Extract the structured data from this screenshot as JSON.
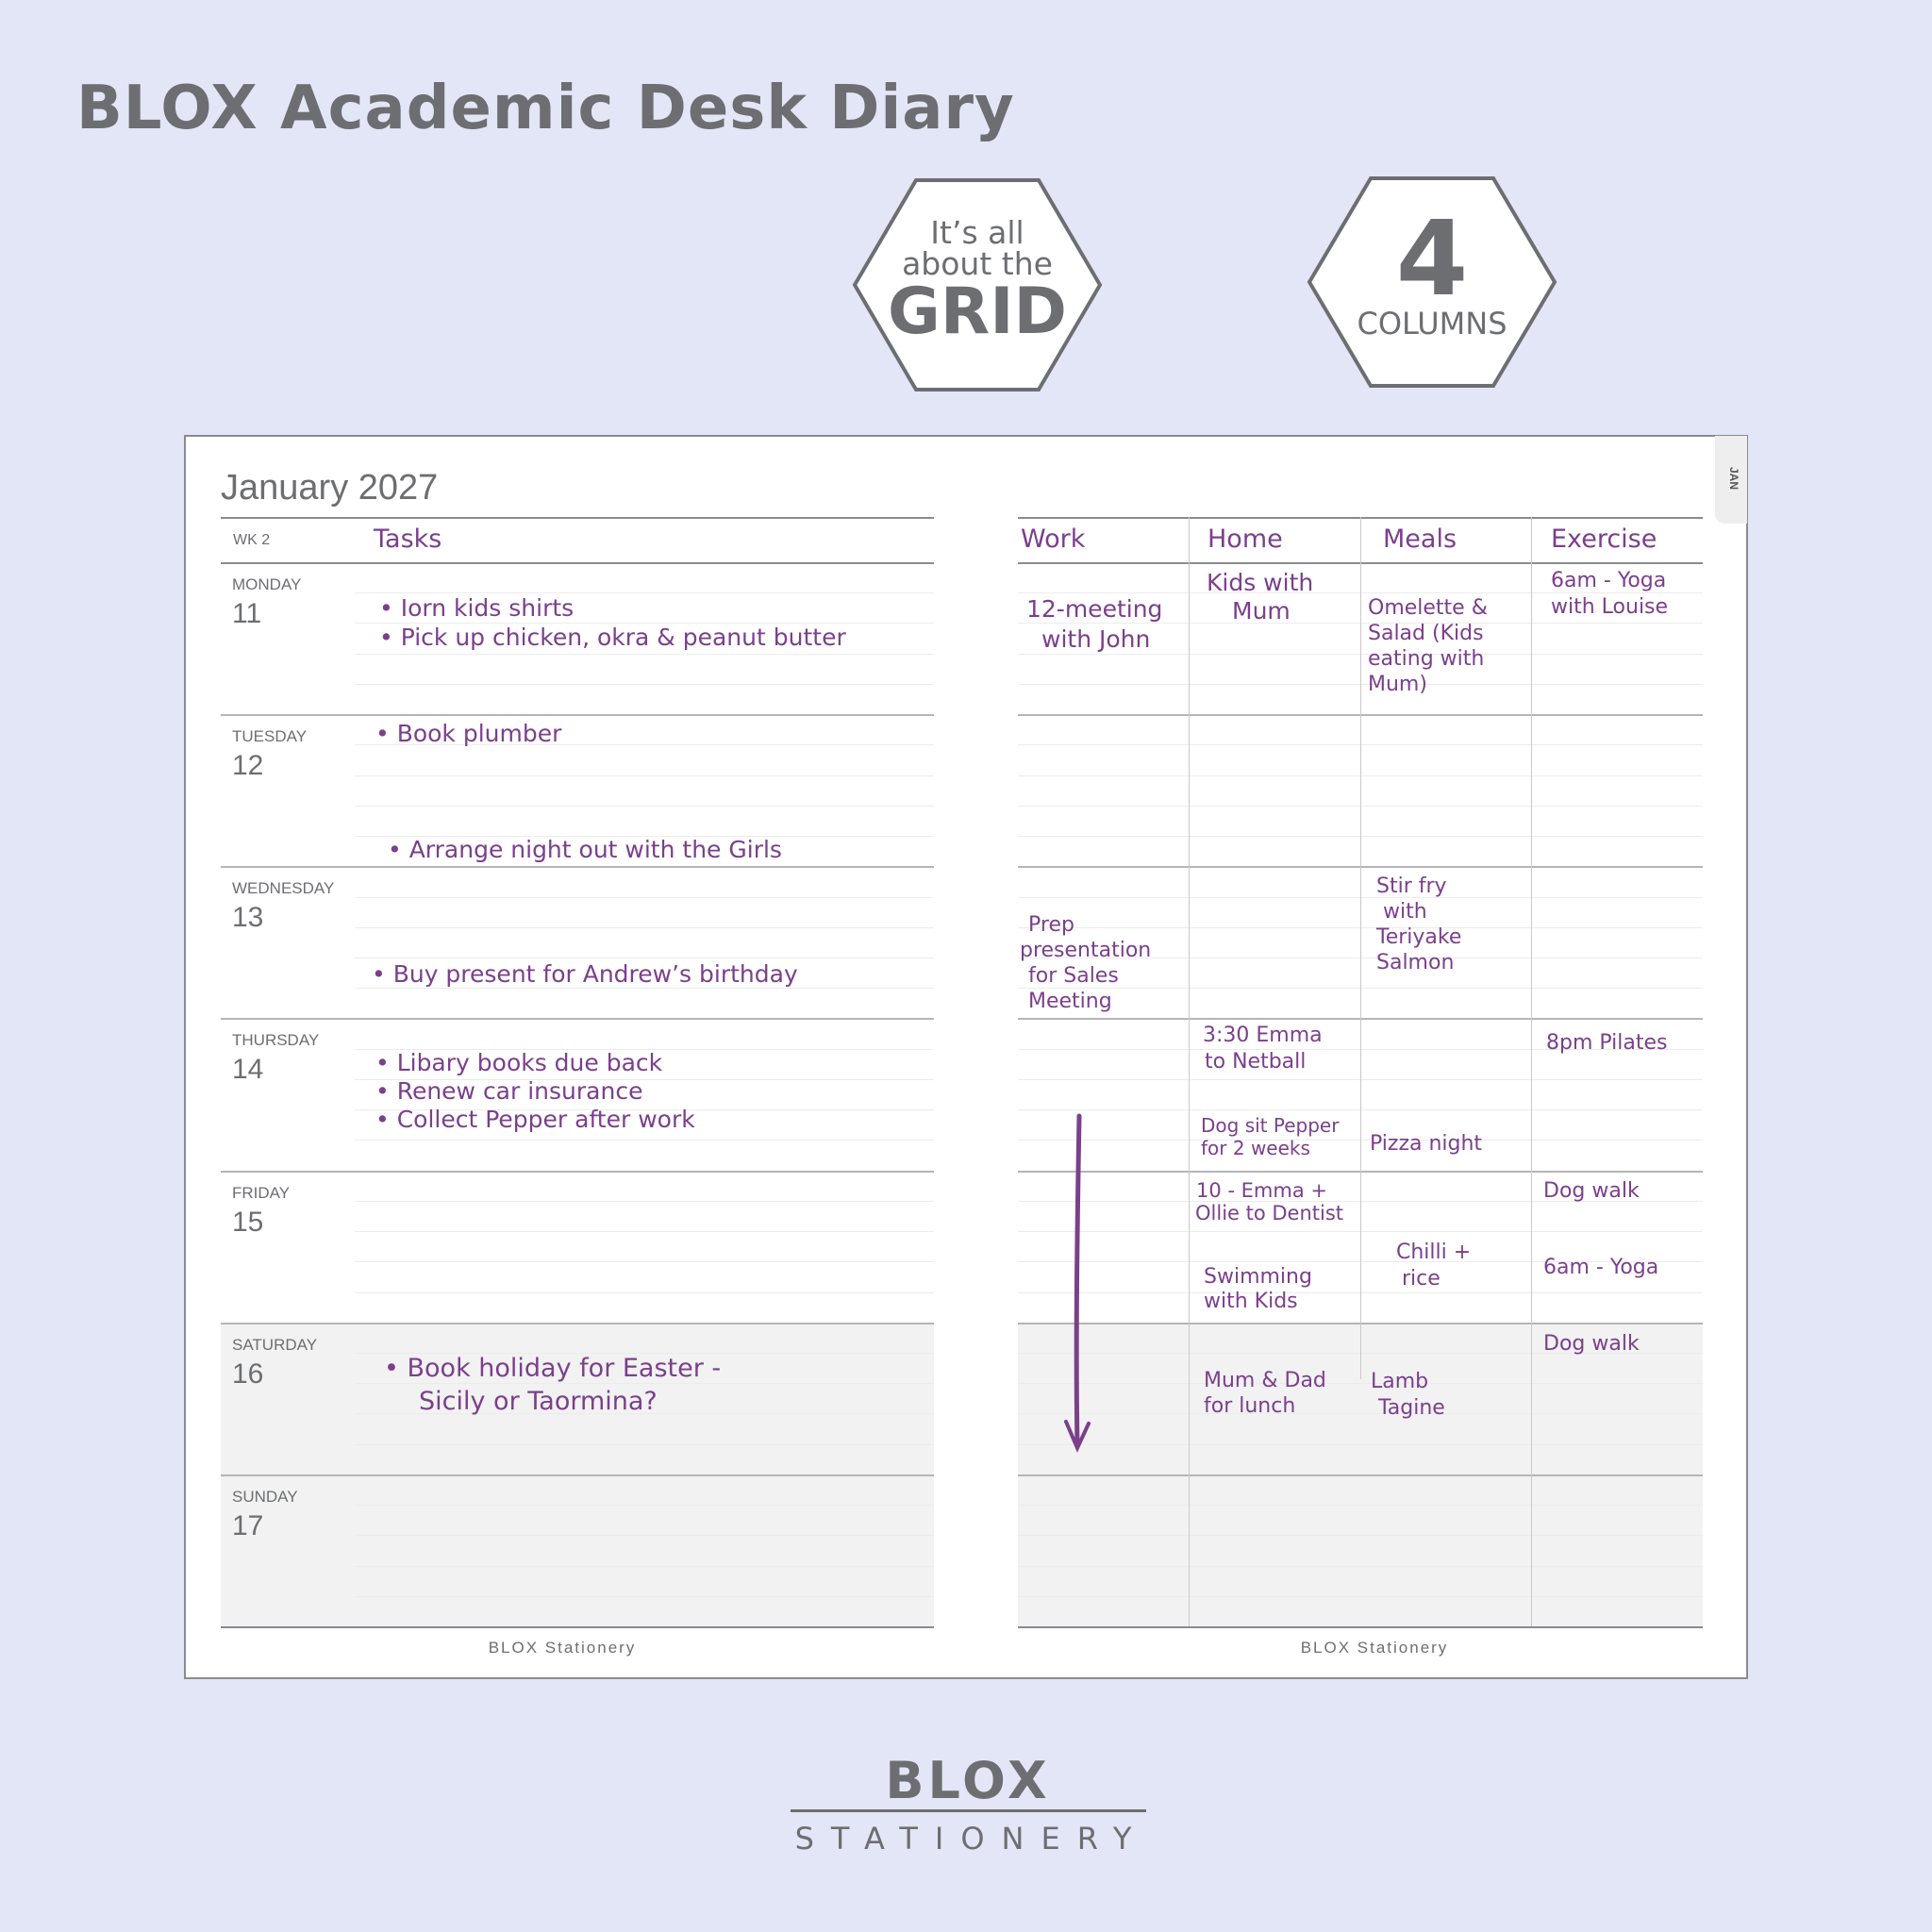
{
  "title": "BLOX Academic Desk Diary",
  "badges": {
    "grid": {
      "line1": "It’s all",
      "line2": "about the",
      "line3": "GRID"
    },
    "columns": {
      "number": "4",
      "label": "COLUMNS"
    }
  },
  "diary": {
    "month": "January 2027",
    "tab": "JAN",
    "week": "WK  2",
    "tasks_header": "Tasks",
    "columns": [
      "Work",
      "Home",
      "Meals",
      "Exercise"
    ],
    "days": [
      {
        "name": "MONDAY",
        "num": "11"
      },
      {
        "name": "TUESDAY",
        "num": "12"
      },
      {
        "name": "WEDNESDAY",
        "num": "13"
      },
      {
        "name": "THURSDAY",
        "num": "14"
      },
      {
        "name": "FRIDAY",
        "num": "15"
      },
      {
        "name": "SATURDAY",
        "num": "16"
      },
      {
        "name": "SUNDAY",
        "num": "17"
      }
    ],
    "tasks": [
      "• Iorn kids shirts",
      "• Pick up chicken, okra & peanut butter",
      "• Book plumber",
      "• Arrange night out with the Girls",
      "• Buy present for Andrew’s birthday",
      "• Libary books due back",
      "• Renew car insurance",
      "• Collect Pepper after work",
      "• Book holiday for Easter -",
      "Sicily or Taormina?"
    ],
    "notes": {
      "mon_work": [
        "12-meeting",
        "with John"
      ],
      "mon_home": [
        "Kids with",
        "Mum"
      ],
      "mon_meals": [
        "Omelette &",
        "Salad (Kids",
        "eating with",
        "Mum)"
      ],
      "mon_ex": [
        "6am - Yoga",
        "with Louise"
      ],
      "wed_work": [
        "Prep",
        "presentation",
        "for Sales",
        "Meeting"
      ],
      "wed_meals": [
        "Stir fry",
        "with",
        "Teriyake",
        "Salmon"
      ],
      "thu_home": [
        "3:30 Emma",
        "to Netball"
      ],
      "thu_ex": "8pm Pilates",
      "thu_home2": [
        "Dog sit Pepper",
        "for 2 weeks"
      ],
      "thu_meals": "Pizza night",
      "fri_home": [
        "10 - Emma +",
        "Ollie to Dentist"
      ],
      "fri_ex": "Dog walk",
      "fri_meals": [
        "Chilli +",
        "rice"
      ],
      "fri_ex2": "6am - Yoga",
      "fri_home2": [
        "Swimming",
        "with Kids"
      ],
      "sat_ex": "Dog walk",
      "sat_home": [
        "Mum & Dad",
        "for lunch"
      ],
      "sat_meals": [
        "Lamb",
        "Tagine"
      ]
    },
    "footer_left": "BLOX Stationery",
    "footer_right": "BLOX Stationery"
  },
  "logo": {
    "top": "BLOX",
    "bottom": "STATIONERY"
  },
  "colors": {
    "background": "#e3e6f7",
    "ink": "#7b3f8c",
    "text": "#6d6e71"
  }
}
